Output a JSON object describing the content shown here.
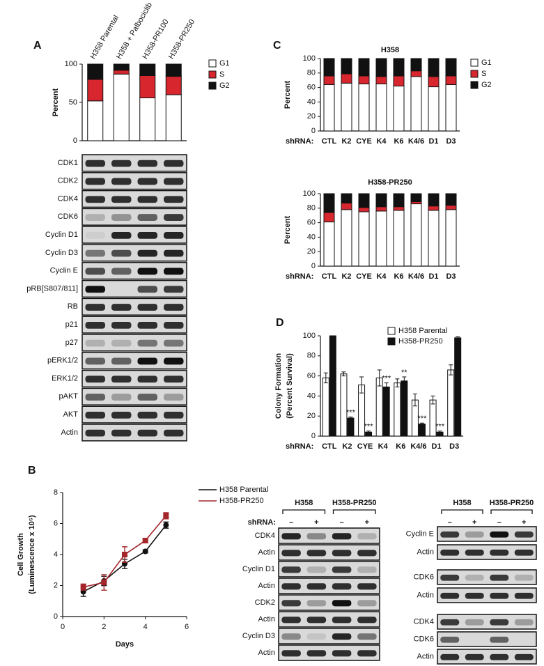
{
  "panel_labels": [
    "A",
    "B",
    "C",
    "D"
  ],
  "chart_data": [
    {
      "type": "bar",
      "stacked": true,
      "ylabel": "Percent",
      "categories": [
        "H358 Parental",
        "H358 + Palbociclib",
        "H358-PR100",
        "H358-PR250"
      ],
      "series": [
        {
          "name": "G1",
          "color": "#ffffff",
          "values": [
            52,
            87,
            56,
            60
          ]
        },
        {
          "name": "S",
          "color": "#d7262e",
          "values": [
            28,
            5,
            29,
            24
          ]
        },
        {
          "name": "G2",
          "color": "#111111",
          "values": [
            20,
            8,
            15,
            16
          ]
        }
      ],
      "ylim": [
        0,
        100
      ],
      "yticks": [
        0,
        50,
        100
      ]
    },
    {
      "type": "bar",
      "stacked": true,
      "title": "H358",
      "ylabel": "Percent",
      "xlabel": "shRNA:",
      "categories": [
        "CTL",
        "K2",
        "CYE",
        "K4",
        "K6",
        "K4/6",
        "D1",
        "D3"
      ],
      "series": [
        {
          "name": "G1",
          "color": "#ffffff",
          "values": [
            64,
            66,
            65,
            65,
            62,
            75,
            61,
            64
          ]
        },
        {
          "name": "S",
          "color": "#d7262e",
          "values": [
            12,
            13,
            11,
            10,
            14,
            8,
            14,
            12
          ]
        },
        {
          "name": "G2",
          "color": "#111111",
          "values": [
            24,
            21,
            24,
            25,
            24,
            17,
            25,
            24
          ]
        }
      ],
      "ylim": [
        0,
        100
      ],
      "yticks": [
        0,
        20,
        40,
        60,
        80,
        100
      ]
    },
    {
      "type": "bar",
      "stacked": true,
      "title": "H358-PR250",
      "ylabel": "Percent",
      "xlabel": "shRNA:",
      "categories": [
        "CTL",
        "K2",
        "CYE",
        "K4",
        "K6",
        "K4/6",
        "D1",
        "D3"
      ],
      "series": [
        {
          "name": "G1",
          "color": "#ffffff",
          "values": [
            61,
            78,
            75,
            76,
            77,
            86,
            77,
            78
          ]
        },
        {
          "name": "S",
          "color": "#d7262e",
          "values": [
            13,
            9,
            6,
            6,
            5,
            3,
            6,
            6
          ]
        },
        {
          "name": "G2",
          "color": "#111111",
          "values": [
            26,
            13,
            19,
            18,
            18,
            11,
            17,
            16
          ]
        }
      ],
      "ylim": [
        0,
        100
      ],
      "yticks": [
        0,
        20,
        40,
        60,
        80,
        100
      ]
    },
    {
      "type": "bar",
      "stacked": false,
      "ylabel": [
        "Colony Formation",
        "(Percent Survival)"
      ],
      "xlabel": "shRNA:",
      "categories": [
        "CTL",
        "K2",
        "CYE",
        "K4",
        "K6",
        "K4/6",
        "D1",
        "D3"
      ],
      "series": [
        {
          "name": "H358 Parental",
          "color": "#ffffff",
          "values": [
            58,
            62,
            51,
            58,
            53,
            36,
            36,
            66
          ],
          "errors": [
            5,
            2,
            8,
            8,
            4,
            6,
            4,
            5
          ]
        },
        {
          "name": "H358-PR250",
          "color": "#111111",
          "values": [
            100,
            18,
            4,
            49,
            55,
            12,
            4,
            98
          ],
          "errors": [
            0,
            1,
            1,
            4,
            4,
            1,
            1,
            1
          ]
        }
      ],
      "annotations": [
        null,
        "***",
        "***",
        "***",
        "**",
        "***",
        "***",
        null
      ],
      "ylim": [
        0,
        100
      ],
      "yticks": [
        0,
        20,
        40,
        60,
        80,
        100
      ]
    },
    {
      "type": "line",
      "xlabel": "Days",
      "ylabel": [
        "Cell Growth",
        "(Luminescence x 10⁵)"
      ],
      "x": [
        1,
        2,
        3,
        4,
        5
      ],
      "series": [
        {
          "name": "H358 Parental",
          "color": "#111111",
          "marker": "circle",
          "values": [
            1.6,
            2.3,
            3.4,
            4.2,
            5.9
          ],
          "errors": [
            0.3,
            0.3,
            0.3,
            0.1,
            0.2
          ]
        },
        {
          "name": "H358-PR250",
          "color": "#a3262a",
          "marker": "square",
          "values": [
            1.9,
            2.2,
            4.0,
            4.9,
            6.5
          ],
          "errors": [
            0.2,
            0.5,
            0.5,
            0.1,
            0.2
          ]
        }
      ],
      "xlim": [
        0,
        6
      ],
      "xticks": [
        0,
        2,
        4,
        6
      ],
      "ylim": [
        0,
        8
      ],
      "yticks": [
        0,
        2,
        4,
        6,
        8
      ]
    }
  ],
  "blots": {
    "a": {
      "rows": [
        "CDK1",
        "CDK2",
        "CDK4",
        "CDK6",
        "Cyclin D1",
        "Cyclin D3",
        "Cyclin E",
        "pRB[S807/811]",
        "RB",
        "p21",
        "p27",
        "pERK1/2",
        "ERK1/2",
        "pAKT",
        "AKT",
        "Actin"
      ]
    },
    "b_left": {
      "groups": [
        "H358",
        "H358-PR250"
      ],
      "shrna": "shRNA:",
      "lanes": [
        "–",
        "+",
        "–",
        "+"
      ],
      "rows": [
        "CDK4",
        "Actin",
        "Cyclin D1",
        "Actin",
        "CDK2",
        "Actin",
        "Cyclin D3",
        "Actin"
      ]
    },
    "b_right": {
      "groups": [
        "H358",
        "H358-PR250"
      ],
      "lanes": [
        "–",
        "+",
        "–",
        "+"
      ],
      "rows": [
        "Cyclin E",
        "Actin",
        "CDK6",
        "Actin",
        "CDK4",
        "CDK6",
        "Actin"
      ]
    }
  }
}
